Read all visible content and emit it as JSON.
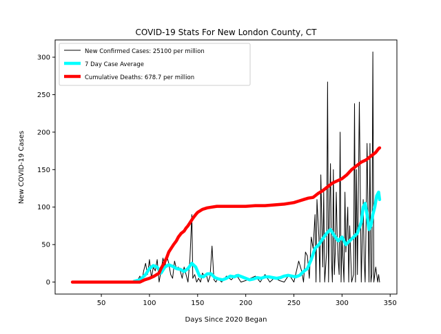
{
  "chart_data": {
    "type": "line",
    "title": "COVID-19 Stats For New London County, CT",
    "xlabel": "Days Since 2020 Began",
    "ylabel": "New COVID-19 Cases",
    "xlim": [
      2,
      357
    ],
    "ylim": [
      -16,
      323
    ],
    "xticks": [
      50,
      100,
      150,
      200,
      250,
      300,
      350
    ],
    "yticks": [
      0,
      50,
      100,
      150,
      200,
      250,
      300
    ],
    "grid": false,
    "legend_position": "top-left",
    "colors": {
      "daily": "#000000",
      "avg": "#00ffff",
      "deaths": "#ff0000"
    },
    "series": [
      {
        "name": "New Confirmed Cases: 25100 per million",
        "color": "#000000",
        "style": "thin-line",
        "x": [
          20,
          60,
          84,
          88,
          90,
          92,
          94,
          96,
          98,
          100,
          102,
          104,
          106,
          108,
          110,
          112,
          114,
          116,
          118,
          120,
          122,
          124,
          126,
          128,
          130,
          132,
          134,
          136,
          138,
          140,
          142,
          144,
          145,
          147,
          149,
          151,
          153,
          155,
          157,
          159,
          161,
          163,
          165,
          167,
          169,
          171,
          175,
          180,
          185,
          190,
          195,
          200,
          205,
          210,
          215,
          220,
          225,
          230,
          235,
          240,
          245,
          250,
          255,
          258,
          260,
          262,
          264,
          266,
          268,
          270,
          272,
          273,
          274,
          276,
          277,
          278,
          280,
          281,
          282,
          284,
          285,
          286,
          287,
          288,
          289,
          290,
          291,
          292,
          293,
          294,
          295,
          296,
          297,
          298,
          299,
          300,
          302,
          303,
          304,
          306,
          307,
          308,
          310,
          312,
          313,
          314,
          315,
          316,
          318,
          320,
          322,
          323,
          324,
          325,
          326,
          328,
          329,
          330,
          331,
          332,
          333,
          334,
          335,
          336,
          337,
          338,
          339
        ],
        "values": [
          0,
          0,
          0,
          3,
          8,
          0,
          15,
          25,
          10,
          30,
          5,
          20,
          15,
          30,
          0,
          15,
          32,
          20,
          35,
          25,
          10,
          5,
          28,
          18,
          20,
          15,
          5,
          20,
          10,
          0,
          30,
          90,
          5,
          10,
          0,
          5,
          0,
          12,
          8,
          10,
          0,
          8,
          48,
          3,
          0,
          5,
          0,
          8,
          3,
          10,
          0,
          2,
          5,
          8,
          0,
          10,
          0,
          6,
          2,
          0,
          10,
          0,
          28,
          15,
          0,
          40,
          35,
          5,
          60,
          45,
          90,
          0,
          110,
          60,
          0,
          143,
          20,
          120,
          0,
          40,
          267,
          0,
          90,
          158,
          30,
          0,
          150,
          10,
          40,
          120,
          60,
          30,
          10,
          200,
          0,
          60,
          0,
          120,
          40,
          100,
          0,
          75,
          0,
          10,
          238,
          0,
          150,
          10,
          240,
          0,
          110,
          30,
          0,
          80,
          185,
          0,
          185,
          0,
          10,
          307,
          0,
          10,
          20,
          10,
          0,
          10,
          0
        ]
      },
      {
        "name": "7 Day Case Average",
        "color": "#00ffff",
        "style": "thick-line",
        "x": [
          84,
          90,
          96,
          100,
          104,
          108,
          112,
          116,
          120,
          124,
          128,
          132,
          136,
          140,
          144,
          148,
          152,
          156,
          160,
          164,
          168,
          172,
          176,
          180,
          184,
          188,
          192,
          196,
          200,
          204,
          208,
          212,
          216,
          220,
          224,
          228,
          232,
          236,
          240,
          244,
          248,
          252,
          256,
          260,
          264,
          268,
          272,
          276,
          280,
          284,
          288,
          292,
          296,
          300,
          304,
          308,
          312,
          316,
          320,
          322,
          324,
          326,
          328,
          330,
          332,
          334,
          336,
          338,
          339
        ],
        "values": [
          1,
          3,
          10,
          18,
          22,
          20,
          12,
          20,
          23,
          21,
          18,
          17,
          14,
          18,
          25,
          20,
          8,
          7,
          11,
          11,
          6,
          4,
          3,
          5,
          8,
          7,
          9,
          7,
          5,
          3,
          4,
          6,
          5,
          7,
          7,
          6,
          5,
          6,
          8,
          9,
          8,
          7,
          9,
          14,
          18,
          30,
          45,
          50,
          58,
          65,
          70,
          62,
          55,
          60,
          50,
          55,
          60,
          65,
          80,
          100,
          105,
          90,
          70,
          75,
          90,
          100,
          115,
          120,
          110
        ]
      },
      {
        "name": "Cumulative Deaths: 678.7 per million",
        "color": "#ff0000",
        "style": "thick-line",
        "x": [
          20,
          50,
          80,
          90,
          95,
          100,
          105,
          110,
          112,
          115,
          118,
          120,
          122,
          125,
          128,
          130,
          133,
          136,
          138,
          140,
          142,
          145,
          148,
          150,
          155,
          160,
          165,
          170,
          180,
          190,
          200,
          210,
          220,
          230,
          240,
          250,
          255,
          260,
          265,
          270,
          275,
          280,
          285,
          290,
          295,
          300,
          305,
          310,
          315,
          320,
          325,
          330,
          335,
          338,
          339
        ],
        "values": [
          0,
          0,
          0,
          0,
          3,
          5,
          8,
          12,
          18,
          25,
          33,
          40,
          44,
          50,
          55,
          60,
          65,
          68,
          72,
          75,
          79,
          85,
          90,
          93,
          97,
          99,
          100,
          101,
          101,
          101,
          101,
          102,
          102,
          103,
          104,
          106,
          108,
          110,
          112,
          113,
          118,
          122,
          127,
          132,
          135,
          138,
          143,
          150,
          155,
          160,
          163,
          168,
          173,
          178,
          179
        ]
      }
    ]
  }
}
